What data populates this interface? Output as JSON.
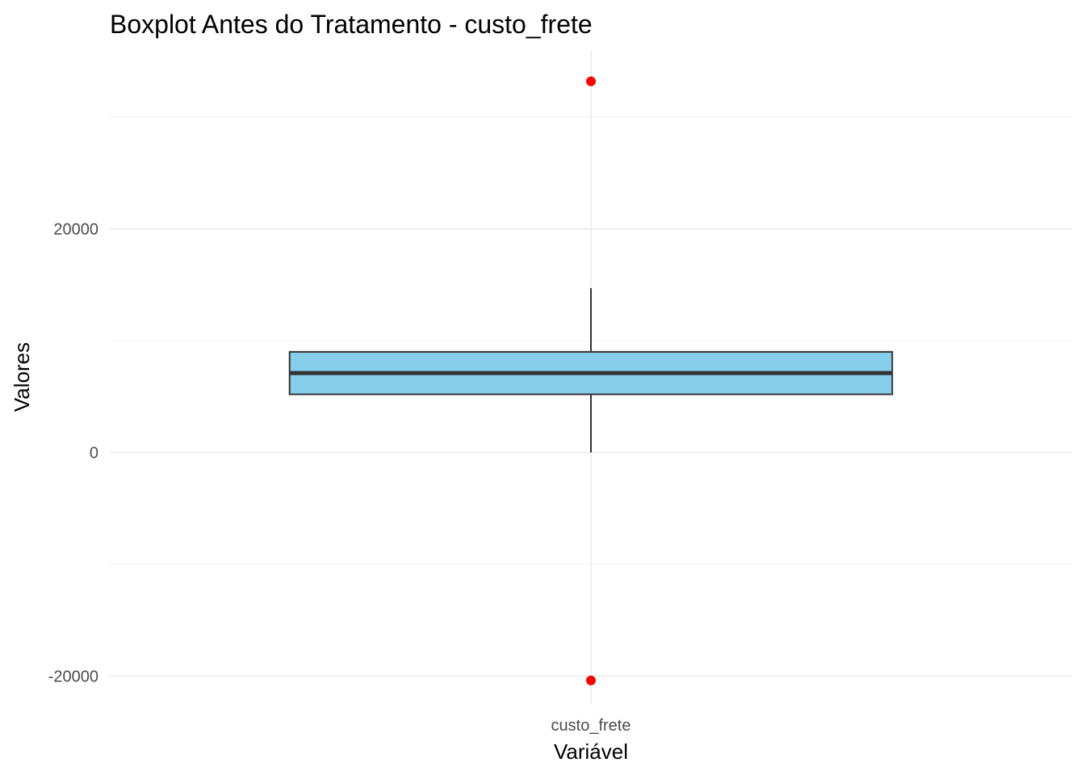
{
  "chart_data": {
    "type": "boxplot",
    "title": "Boxplot Antes do Tratamento - custo_frete",
    "xlabel": "Variável",
    "ylabel": "Valores",
    "categories": [
      "custo_frete"
    ],
    "ylim": [
      -22500,
      36000
    ],
    "yticks": [
      -20000,
      0,
      20000
    ],
    "grid": true,
    "boxes": [
      {
        "category": "custo_frete",
        "whisker_low": 0,
        "q1": 5200,
        "median": 7100,
        "q3": 9000,
        "whisker_high": 14700,
        "outliers": [
          33200,
          -20400
        ]
      }
    ],
    "colors": {
      "box_fill": "#87ceeb",
      "box_line": "#333333",
      "outlier": "#ff0000",
      "grid": "#ebebeb"
    }
  }
}
